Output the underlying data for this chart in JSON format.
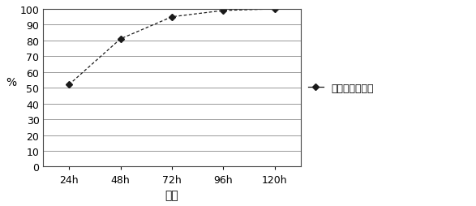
{
  "x_labels": [
    "24h",
    "48h",
    "72h",
    "96h",
    "120h"
  ],
  "x_values": [
    1,
    2,
    3,
    4,
    5
  ],
  "y_values": [
    52,
    81,
    95,
    99,
    100
  ],
  "xlabel": "时间",
  "ylabel": "%",
  "ylim": [
    0,
    100
  ],
  "yticks": [
    0,
    10,
    20,
    30,
    40,
    50,
    60,
    70,
    80,
    90,
    100
  ],
  "line_color": "#1a1a1a",
  "marker": "D",
  "marker_size": 4,
  "legend_label": "多氯联苯去除率",
  "line_style": "--",
  "background_color": "#ffffff",
  "grid_color": "#888888",
  "label_fontsize": 10,
  "tick_fontsize": 9
}
